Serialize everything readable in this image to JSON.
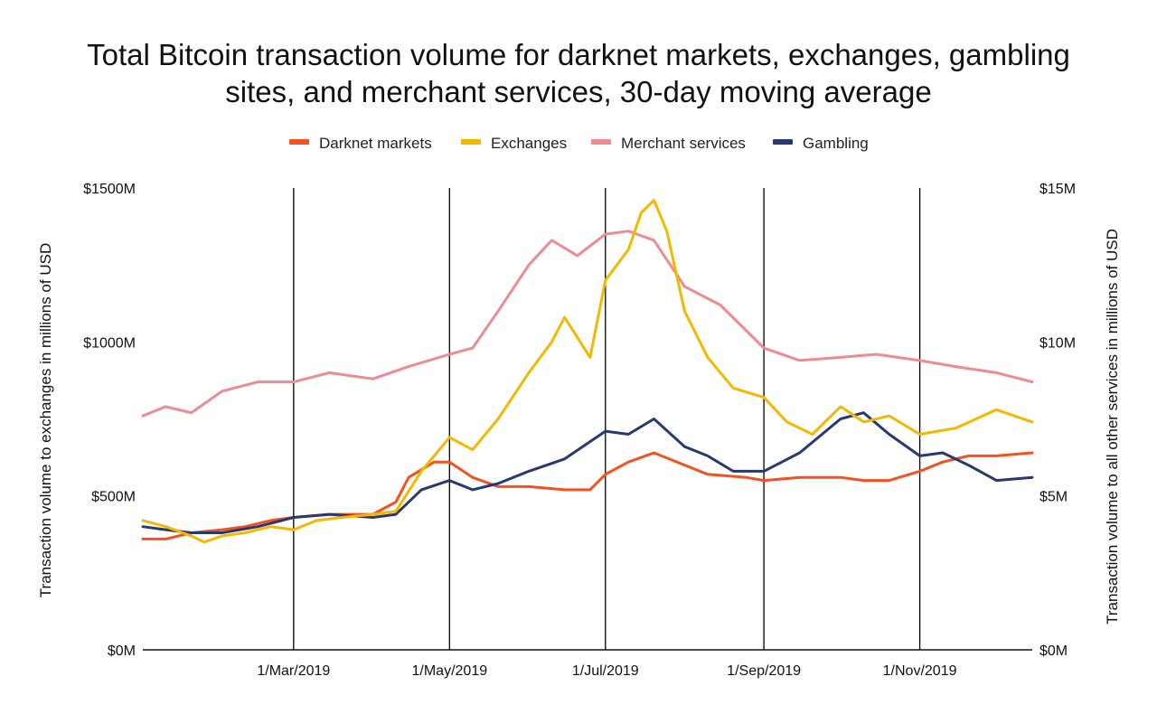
{
  "chart_data": {
    "type": "line",
    "title": "Total Bitcoin transaction volume for darknet markets, exchanges, gambling sites, and merchant services, 30-day moving average",
    "title_lines": [
      "Total Bitcoin transaction volume for darknet markets, exchanges, gambling",
      "sites, and merchant services, 30-day moving average"
    ],
    "ylabel_left": "Transaction  volume to exchanges in millions of USD",
    "ylabel_right": "Transaction volume to all other services in millions of USD",
    "y_left_ticks": [
      "$0M",
      "$500M",
      "$1000M",
      "$1500M"
    ],
    "y_right_ticks": [
      "$0M",
      "$5M",
      "$10M",
      "$15M"
    ],
    "ylim_left": [
      0,
      1500
    ],
    "ylim_right": [
      0,
      15
    ],
    "xlim": [
      "2019-01-01",
      "2019-12-15"
    ],
    "x_ticks": [
      {
        "date": "2019-03-01",
        "label": "1/Mar/2019"
      },
      {
        "date": "2019-05-01",
        "label": "1/May/2019"
      },
      {
        "date": "2019-07-01",
        "label": "1/Jul/2019"
      },
      {
        "date": "2019-09-01",
        "label": "1/Sep/2019"
      },
      {
        "date": "2019-11-01",
        "label": "1/Nov/2019"
      }
    ],
    "grid": "vertical lines at x ticks",
    "legend_position": "top-center",
    "series": [
      {
        "name": "Darknet markets",
        "color": "#f4511e",
        "axis": "right",
        "points": [
          [
            "2019-01-01",
            3.6
          ],
          [
            "2019-01-10",
            3.6
          ],
          [
            "2019-01-20",
            3.8
          ],
          [
            "2019-02-01",
            3.9
          ],
          [
            "2019-02-10",
            4.0
          ],
          [
            "2019-02-20",
            4.2
          ],
          [
            "2019-03-01",
            4.3
          ],
          [
            "2019-03-15",
            4.4
          ],
          [
            "2019-04-01",
            4.4
          ],
          [
            "2019-04-10",
            4.8
          ],
          [
            "2019-04-15",
            5.6
          ],
          [
            "2019-04-25",
            6.1
          ],
          [
            "2019-05-01",
            6.1
          ],
          [
            "2019-05-10",
            5.6
          ],
          [
            "2019-05-20",
            5.3
          ],
          [
            "2019-06-01",
            5.3
          ],
          [
            "2019-06-15",
            5.2
          ],
          [
            "2019-06-25",
            5.2
          ],
          [
            "2019-07-01",
            5.7
          ],
          [
            "2019-07-10",
            6.1
          ],
          [
            "2019-07-20",
            6.4
          ],
          [
            "2019-08-01",
            6.0
          ],
          [
            "2019-08-10",
            5.7
          ],
          [
            "2019-08-25",
            5.6
          ],
          [
            "2019-09-01",
            5.5
          ],
          [
            "2019-09-15",
            5.6
          ],
          [
            "2019-10-01",
            5.6
          ],
          [
            "2019-10-10",
            5.5
          ],
          [
            "2019-10-20",
            5.5
          ],
          [
            "2019-11-01",
            5.8
          ],
          [
            "2019-11-10",
            6.1
          ],
          [
            "2019-11-20",
            6.3
          ],
          [
            "2019-12-01",
            6.3
          ],
          [
            "2019-12-15",
            6.4
          ]
        ]
      },
      {
        "name": "Exchanges",
        "color": "#f5b800",
        "axis": "left",
        "points": [
          [
            "2019-01-01",
            420
          ],
          [
            "2019-01-10",
            400
          ],
          [
            "2019-01-20",
            370
          ],
          [
            "2019-01-25",
            350
          ],
          [
            "2019-02-01",
            370
          ],
          [
            "2019-02-10",
            380
          ],
          [
            "2019-02-20",
            400
          ],
          [
            "2019-03-01",
            390
          ],
          [
            "2019-03-10",
            420
          ],
          [
            "2019-03-20",
            430
          ],
          [
            "2019-04-01",
            440
          ],
          [
            "2019-04-10",
            450
          ],
          [
            "2019-04-20",
            580
          ],
          [
            "2019-05-01",
            690
          ],
          [
            "2019-05-10",
            650
          ],
          [
            "2019-05-20",
            750
          ],
          [
            "2019-06-01",
            900
          ],
          [
            "2019-06-10",
            1000
          ],
          [
            "2019-06-15",
            1080
          ],
          [
            "2019-06-25",
            950
          ],
          [
            "2019-07-01",
            1200
          ],
          [
            "2019-07-10",
            1300
          ],
          [
            "2019-07-15",
            1420
          ],
          [
            "2019-07-20",
            1460
          ],
          [
            "2019-07-25",
            1360
          ],
          [
            "2019-08-01",
            1100
          ],
          [
            "2019-08-10",
            950
          ],
          [
            "2019-08-20",
            850
          ],
          [
            "2019-09-01",
            820
          ],
          [
            "2019-09-10",
            740
          ],
          [
            "2019-09-20",
            700
          ],
          [
            "2019-10-01",
            790
          ],
          [
            "2019-10-10",
            740
          ],
          [
            "2019-10-20",
            760
          ],
          [
            "2019-11-01",
            700
          ],
          [
            "2019-11-15",
            720
          ],
          [
            "2019-12-01",
            780
          ],
          [
            "2019-12-15",
            740
          ]
        ]
      },
      {
        "name": "Merchant services",
        "color": "#ee8a92",
        "axis": "right",
        "points": [
          [
            "2019-01-01",
            7.6
          ],
          [
            "2019-01-10",
            7.9
          ],
          [
            "2019-01-20",
            7.7
          ],
          [
            "2019-02-01",
            8.4
          ],
          [
            "2019-02-15",
            8.7
          ],
          [
            "2019-03-01",
            8.7
          ],
          [
            "2019-03-15",
            9.0
          ],
          [
            "2019-04-01",
            8.8
          ],
          [
            "2019-04-15",
            9.2
          ],
          [
            "2019-05-01",
            9.6
          ],
          [
            "2019-05-10",
            9.8
          ],
          [
            "2019-05-20",
            11.0
          ],
          [
            "2019-06-01",
            12.5
          ],
          [
            "2019-06-10",
            13.3
          ],
          [
            "2019-06-20",
            12.8
          ],
          [
            "2019-07-01",
            13.5
          ],
          [
            "2019-07-10",
            13.6
          ],
          [
            "2019-07-20",
            13.3
          ],
          [
            "2019-08-01",
            11.8
          ],
          [
            "2019-08-15",
            11.2
          ],
          [
            "2019-09-01",
            9.8
          ],
          [
            "2019-09-15",
            9.4
          ],
          [
            "2019-10-01",
            9.5
          ],
          [
            "2019-10-15",
            9.6
          ],
          [
            "2019-11-01",
            9.4
          ],
          [
            "2019-11-15",
            9.2
          ],
          [
            "2019-12-01",
            9.0
          ],
          [
            "2019-12-15",
            8.7
          ]
        ]
      },
      {
        "name": "Gambling",
        "color": "#283870",
        "axis": "right",
        "points": [
          [
            "2019-01-01",
            4.0
          ],
          [
            "2019-01-10",
            3.9
          ],
          [
            "2019-01-20",
            3.8
          ],
          [
            "2019-02-01",
            3.8
          ],
          [
            "2019-02-15",
            4.0
          ],
          [
            "2019-03-01",
            4.3
          ],
          [
            "2019-03-15",
            4.4
          ],
          [
            "2019-04-01",
            4.3
          ],
          [
            "2019-04-10",
            4.4
          ],
          [
            "2019-04-20",
            5.2
          ],
          [
            "2019-05-01",
            5.5
          ],
          [
            "2019-05-10",
            5.2
          ],
          [
            "2019-05-20",
            5.4
          ],
          [
            "2019-06-01",
            5.8
          ],
          [
            "2019-06-15",
            6.2
          ],
          [
            "2019-07-01",
            7.1
          ],
          [
            "2019-07-10",
            7.0
          ],
          [
            "2019-07-20",
            7.5
          ],
          [
            "2019-08-01",
            6.6
          ],
          [
            "2019-08-10",
            6.3
          ],
          [
            "2019-08-20",
            5.8
          ],
          [
            "2019-09-01",
            5.8
          ],
          [
            "2019-09-15",
            6.4
          ],
          [
            "2019-10-01",
            7.5
          ],
          [
            "2019-10-10",
            7.7
          ],
          [
            "2019-10-20",
            7.0
          ],
          [
            "2019-11-01",
            6.3
          ],
          [
            "2019-11-10",
            6.4
          ],
          [
            "2019-11-20",
            6.0
          ],
          [
            "2019-12-01",
            5.5
          ],
          [
            "2019-12-15",
            5.6
          ]
        ]
      }
    ]
  }
}
